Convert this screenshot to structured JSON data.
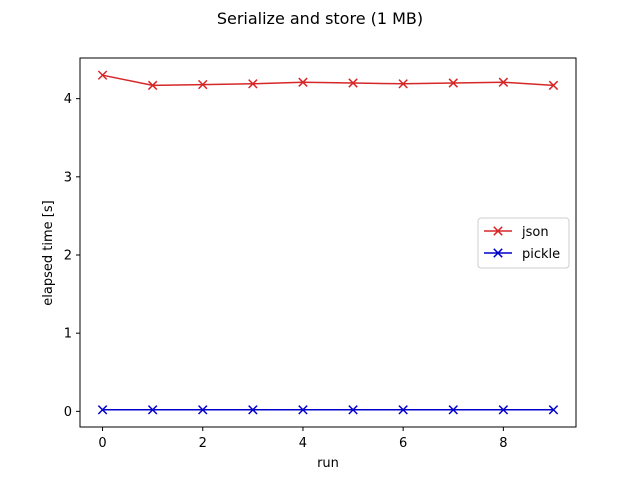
{
  "chart_data": {
    "type": "line",
    "title": "Serialize and store (1 MB)",
    "xlabel": "run",
    "ylabel": "elapsed time [s]",
    "x": [
      0,
      1,
      2,
      3,
      4,
      5,
      6,
      7,
      8,
      9
    ],
    "xlim": [
      -0.45,
      9.45
    ],
    "ylim": [
      -0.2,
      4.52
    ],
    "xticks": [
      0,
      2,
      4,
      6,
      8
    ],
    "yticks": [
      0,
      1,
      2,
      3,
      4
    ],
    "grid": false,
    "legend": "center-right",
    "series": [
      {
        "name": "json",
        "color": "#d62728",
        "marker": "x",
        "values": [
          4.3,
          4.17,
          4.18,
          4.19,
          4.21,
          4.2,
          4.19,
          4.2,
          4.21,
          4.17
        ]
      },
      {
        "name": "pickle",
        "color": "#0000cc",
        "marker": "x",
        "values": [
          0.02,
          0.02,
          0.02,
          0.02,
          0.02,
          0.02,
          0.02,
          0.02,
          0.02,
          0.02
        ]
      }
    ]
  }
}
